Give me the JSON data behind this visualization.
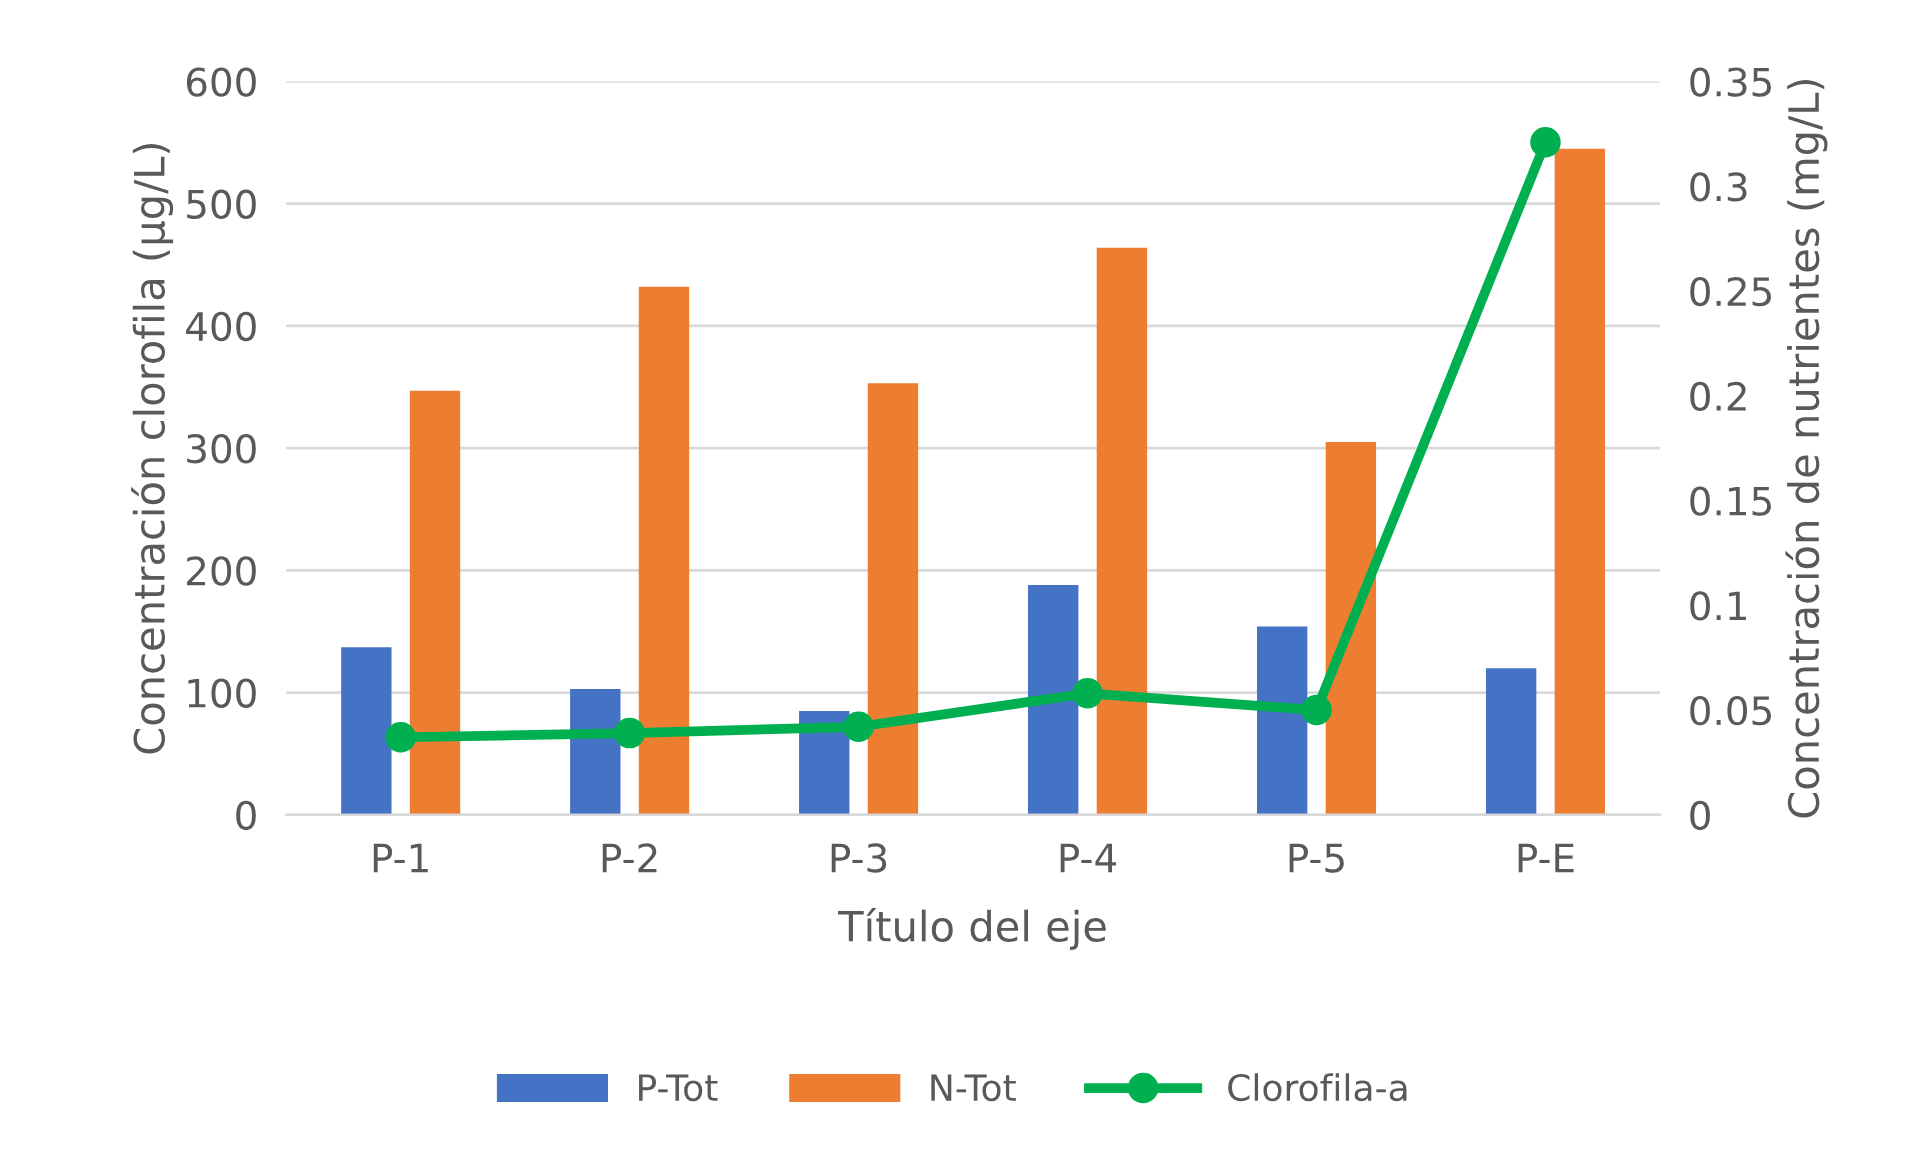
{
  "chart_data": {
    "type": "bar",
    "xlabel": "Título del eje",
    "ylabel": "Concentración clorofila (µg/L)",
    "y2label": "Concentración de nutrientes (mg/L)",
    "categories": [
      "P-1",
      "P-2",
      "P-3",
      "P-4",
      "P-5",
      "P-E"
    ],
    "series": [
      {
        "name": "P-Tot",
        "color": "#4472c4",
        "values": [
          137,
          103,
          85,
          188,
          154,
          120
        ]
      },
      {
        "name": "N-Tot",
        "color": "#ed7d31",
        "values": [
          347,
          432,
          353,
          464,
          305,
          545
        ]
      },
      {
        "name": "Clorofila-a",
        "type": "line",
        "axis": "y2",
        "color": "#00b050",
        "marker": "circle",
        "values": [
          0.037,
          0.039,
          0.042,
          0.058,
          0.05,
          0.321
        ]
      }
    ],
    "ylim": [
      0,
      600
    ],
    "yticks": [
      0,
      100,
      200,
      300,
      400,
      500,
      600
    ],
    "y2lim": [
      0,
      0.35
    ],
    "y2ticks": [
      0,
      0.05,
      0.1,
      0.15,
      0.2,
      0.25,
      0.3,
      0.35
    ],
    "grid": "y",
    "legend": "bottom"
  }
}
